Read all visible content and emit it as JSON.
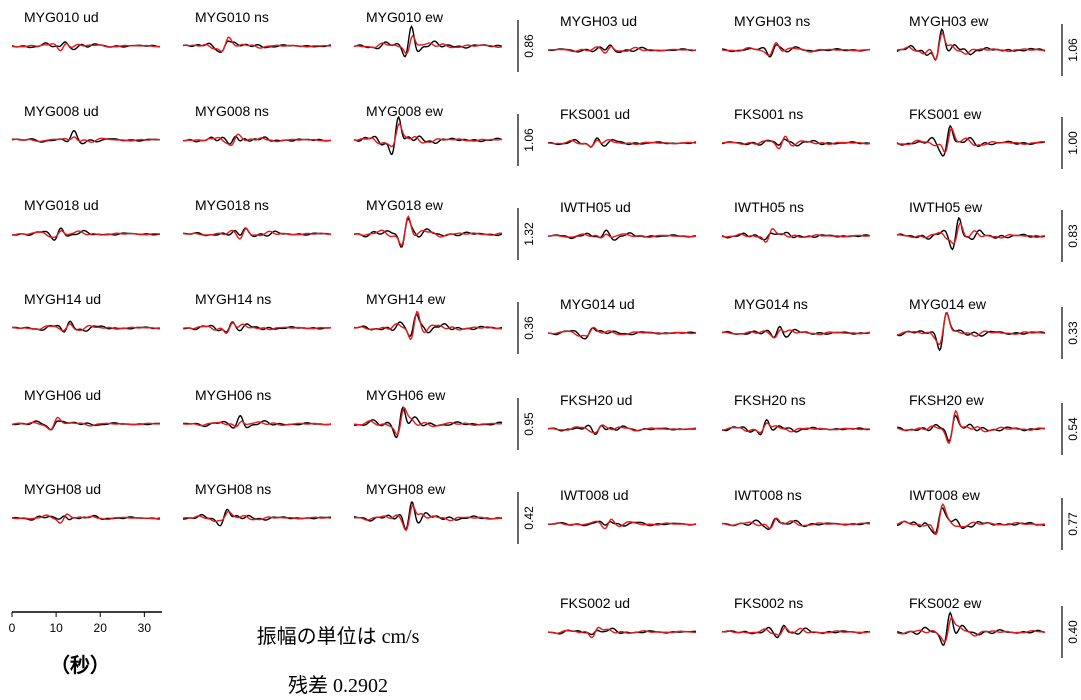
{
  "chart_data": {
    "type": "line",
    "xlabel": "（秒）",
    "xticks": [
      0,
      10,
      20,
      30
    ],
    "xlim": [
      0,
      34
    ],
    "legend": "none",
    "colors": {
      "observed": "#000000",
      "synthetic": "#e41a1c"
    },
    "panels": [
      {
        "station": "MYG010",
        "scale": "0.86",
        "labels": [
          "MYG010 ud",
          "MYG010 ns",
          "MYG010 ew"
        ]
      },
      {
        "station": "MYG008",
        "scale": "1.06",
        "labels": [
          "MYG008 ud",
          "MYG008 ns",
          "MYG008 ew"
        ]
      },
      {
        "station": "MYG018",
        "scale": "1.32",
        "labels": [
          "MYG018 ud",
          "MYG018 ns",
          "MYG018 ew"
        ]
      },
      {
        "station": "MYGH14",
        "scale": "0.36",
        "labels": [
          "MYGH14 ud",
          "MYGH14 ns",
          "MYGH14 ew"
        ]
      },
      {
        "station": "MYGH06",
        "scale": "0.95",
        "labels": [
          "MYGH06 ud",
          "MYGH06 ns",
          "MYGH06 ew"
        ]
      },
      {
        "station": "MYGH08",
        "scale": "0.42",
        "labels": [
          "MYGH08 ud",
          "MYGH08 ns",
          "MYGH08 ew"
        ]
      },
      {
        "station": "MYGH03",
        "scale": "1.06",
        "labels": [
          "MYGH03 ud",
          "MYGH03 ns",
          "MYGH03 ew"
        ]
      },
      {
        "station": "FKS001",
        "scale": "1.00",
        "labels": [
          "FKS001 ud",
          "FKS001 ns",
          "FKS001 ew"
        ]
      },
      {
        "station": "IWTH05",
        "scale": "0.83",
        "labels": [
          "IWTH05 ud",
          "IWTH05 ns",
          "IWTH05 ew"
        ]
      },
      {
        "station": "MYG014",
        "scale": "0.33",
        "labels": [
          "MYG014 ud",
          "MYG014 ns",
          "MYG014 ew"
        ]
      },
      {
        "station": "FKSH20",
        "scale": "0.54",
        "labels": [
          "FKSH20 ud",
          "FKSH20 ns",
          "FKSH20 ew"
        ]
      },
      {
        "station": "IWT008",
        "scale": "0.77",
        "labels": [
          "IWT008 ud",
          "IWT008 ns",
          "IWT008 ew"
        ]
      },
      {
        "station": "FKS002",
        "scale": "0.40",
        "labels": [
          "FKS002 ud",
          "FKS002 ns",
          "FKS002 ew"
        ]
      }
    ],
    "annotations": {
      "amplitude_unit": "振幅の単位は cm/s",
      "residual": "残差  0.2902"
    }
  }
}
